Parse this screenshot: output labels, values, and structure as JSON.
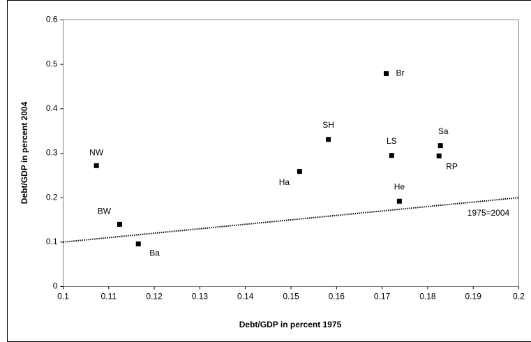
{
  "chart_data": {
    "type": "scatter",
    "xlabel": "Debt/GDP in percent 1975",
    "ylabel": "Debt/GDP in percent 2004",
    "series": [
      {
        "color": "#000000",
        "labels": [
          "NW",
          "BW",
          "Ba",
          "Ha",
          "SH",
          "Br",
          "LS",
          "He",
          "Sa",
          "RP"
        ],
        "x": [
          0.1073,
          0.1124,
          0.1165,
          0.1519,
          0.1582,
          0.1709,
          0.1721,
          0.1738,
          0.1828,
          0.1825
        ],
        "values": [
          0.272,
          0.14,
          0.096,
          0.259,
          0.331,
          0.479,
          0.295,
          0.192,
          0.317,
          0.294
        ]
      }
    ],
    "reference_line": {
      "label": "1975=2004",
      "x": [
        0.1,
        0.2
      ],
      "values": [
        0.1,
        0.2
      ],
      "color": "#000000"
    },
    "xlim": [
      0.1,
      0.2
    ],
    "ylim": [
      0,
      0.6
    ],
    "xticks": [
      0.1,
      0.11,
      0.12,
      0.13,
      0.14,
      0.15,
      0.16,
      0.17,
      0.18,
      0.19,
      0.2
    ],
    "yticks": [
      0,
      0.1,
      0.2,
      0.3,
      0.4,
      0.5,
      0.6
    ],
    "grid": false
  }
}
